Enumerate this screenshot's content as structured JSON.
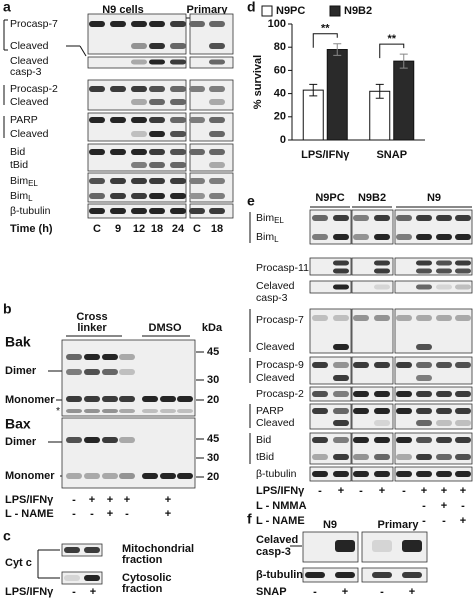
{
  "panels": {
    "a": {
      "label": "a",
      "headers": [
        "N9 cells",
        "Primary"
      ],
      "rows": [
        "Procasp-7",
        "Cleaved",
        "Cleaved",
        "casp-3",
        "Procasp-2",
        "Cleaved",
        "PARP",
        "Cleaved",
        "Bid",
        "tBid",
        {
          "text": "Bim",
          "sub": "EL"
        },
        {
          "text": "Bim",
          "sub": "L"
        },
        "β-tubulin"
      ],
      "time_label": "Time (h)",
      "lanes": [
        "C",
        "9",
        "12",
        "18",
        "24",
        "C",
        "18"
      ]
    },
    "b": {
      "label": "b",
      "headers": [
        "Cross",
        "linker",
        "DMSO",
        "kDa"
      ],
      "bak": {
        "title": "Bak",
        "rows": [
          "Dimer",
          "Monomer",
          "*"
        ],
        "kda": [
          "45",
          "30",
          "20"
        ]
      },
      "bax": {
        "title": "Bax",
        "rows": [
          "Dimer",
          "Monomer"
        ],
        "kda": [
          "45",
          "30",
          "20"
        ]
      },
      "treatments": [
        {
          "name": "LPS/IFNγ",
          "signs": [
            "-",
            "+",
            "+",
            "+",
            "+"
          ]
        },
        {
          "name": "L - NAME",
          "signs": [
            "-",
            "-",
            "+",
            "-",
            "+"
          ]
        }
      ]
    },
    "c": {
      "label": "c",
      "protein": "Cyt c",
      "fractions": [
        [
          "Mitochondrial",
          "fraction"
        ],
        [
          "Cytosolic",
          "fraction"
        ]
      ],
      "treatment": {
        "name": "LPS/IFNγ",
        "signs": [
          "-",
          "+"
        ]
      }
    },
    "e": {
      "label": "e",
      "headers": [
        "N9PC",
        "N9B2",
        "N9"
      ],
      "rows": [
        {
          "text": "Bim",
          "sub": "EL"
        },
        {
          "text": "Bim",
          "sub": "L"
        },
        "Procasp-11",
        "Celaved",
        "casp-3",
        "Procasp-7",
        "Cleaved",
        "Procasp-9",
        "Cleaved",
        "Procasp-2",
        "PARP",
        "Cleaved",
        "Bid",
        "tBid",
        "β-tubulin"
      ],
      "treatments": [
        {
          "name": "LPS/IFNγ",
          "signs": [
            "-",
            "+",
            "-",
            "+",
            "-",
            "+",
            "+",
            "+"
          ]
        },
        {
          "name": "L - NMMA",
          "signs": [
            "-",
            "+",
            "-"
          ]
        },
        {
          "name": "L - NAME",
          "signs": [
            "-",
            "-",
            "+"
          ]
        }
      ]
    },
    "f": {
      "label": "f",
      "headers": [
        "N9",
        "Primary"
      ],
      "rows": [
        "Celaved",
        "casp-3",
        "β-tubulin"
      ],
      "treatment": {
        "name": "SNAP",
        "signs": [
          "-",
          "+",
          "-",
          "+"
        ]
      }
    }
  },
  "chart_data": {
    "type": "bar",
    "panel_label": "d",
    "ylabel": "% survival",
    "categories": [
      "LPS/IFNγ",
      "SNAP"
    ],
    "series": [
      {
        "name": "N9PC",
        "color": "#ffffff",
        "values": [
          43,
          42
        ],
        "errors": [
          5,
          6
        ]
      },
      {
        "name": "N9B2",
        "color": "#2a2a2a",
        "values": [
          78,
          68
        ],
        "errors": [
          5,
          6
        ]
      }
    ],
    "ylim": [
      0,
      100
    ],
    "yticks": [
      0,
      20,
      40,
      60,
      80,
      100
    ],
    "annotations": [
      "**",
      "**"
    ]
  }
}
